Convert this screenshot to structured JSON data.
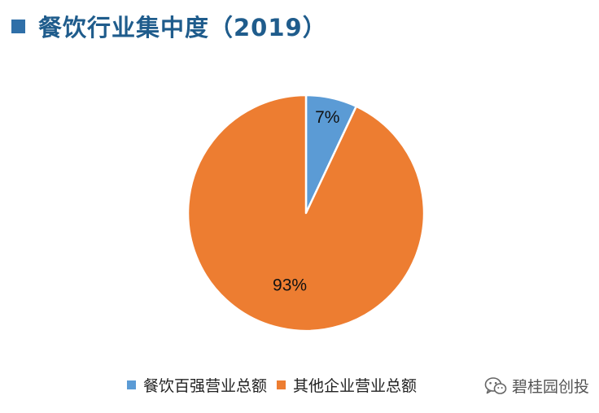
{
  "header": {
    "title": "餐饮行业集中度（2019）",
    "accent_color": "#2f6fa8",
    "title_color": "#1f5c8c"
  },
  "chart_data": {
    "type": "pie",
    "title": "餐饮行业集中度（2019）",
    "start_angle_deg": 0,
    "direction": "clockwise",
    "slices": [
      {
        "name": "餐饮百强营业总额",
        "value": 7,
        "label": "7%",
        "color": "#5b9bd5"
      },
      {
        "name": "其他企业营业总额",
        "value": 93,
        "label": "93%",
        "color": "#ed7d31"
      }
    ],
    "legend": {
      "position": "bottom",
      "items": [
        {
          "label": "餐饮百强营业总额",
          "color": "#5b9bd5"
        },
        {
          "label": "其他企业营业总额",
          "color": "#ed7d31"
        }
      ]
    }
  },
  "watermark": {
    "icon": "wechat-icon",
    "text": "碧桂园创投"
  }
}
